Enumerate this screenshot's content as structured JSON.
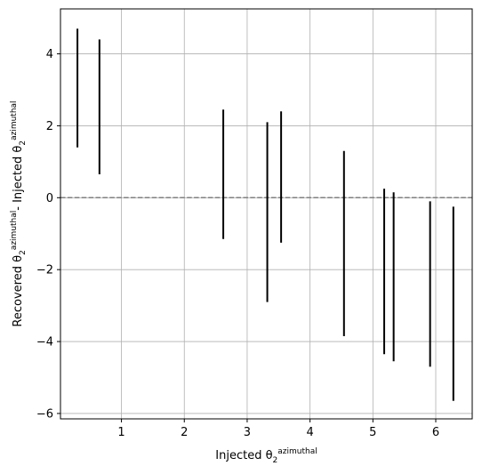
{
  "chart_data": {
    "type": "errorbar",
    "title": "",
    "xlabel": {
      "main": "Injected θ",
      "sub": "2",
      "sup": "azimuthal"
    },
    "ylabel": {
      "part1_main": "Recovered θ",
      "part1_sub": "2",
      "part1_sup": "azimuthal",
      "separator": "- ",
      "part2_main": "Injected θ",
      "part2_sub": "2",
      "part2_sup": "azimuthal"
    },
    "xlim": [
      0.03,
      6.58
    ],
    "ylim": [
      -6.15,
      5.25
    ],
    "xticks": [
      1,
      2,
      3,
      4,
      5,
      6
    ],
    "yticks": [
      -6,
      -4,
      -2,
      0,
      2,
      4
    ],
    "xtick_labels": [
      "1",
      "2",
      "3",
      "4",
      "5",
      "6"
    ],
    "ytick_labels": [
      "−6",
      "−4",
      "−2",
      "0",
      "2",
      "4"
    ],
    "grid": true,
    "reference_line": {
      "y": 0,
      "style": "dashed",
      "color": "#808080"
    },
    "bar_color": "#000000",
    "series": [
      {
        "x": [
          0.3,
          0.65,
          2.62,
          3.32,
          3.54,
          4.54,
          5.18,
          5.33,
          5.91,
          6.28
        ],
        "y_low": [
          1.4,
          0.65,
          -1.15,
          -2.9,
          -1.25,
          -3.85,
          -4.35,
          -4.55,
          -4.7,
          -5.65
        ],
        "y_high": [
          4.7,
          4.4,
          2.45,
          2.1,
          2.4,
          1.3,
          0.25,
          0.15,
          -0.1,
          -0.25
        ]
      }
    ]
  }
}
